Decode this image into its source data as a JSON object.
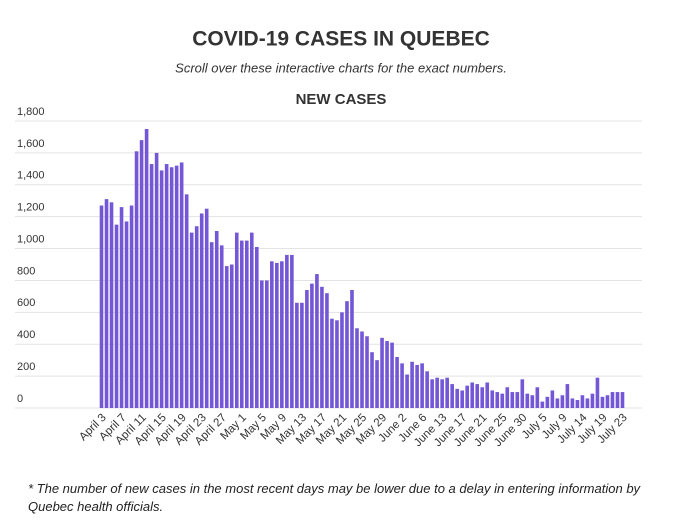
{
  "chart_data": {
    "type": "bar",
    "title": "COVID-19 CASES IN QUEBEC",
    "subtitle": "Scroll over these interactive charts for the exact numbers.",
    "chart_title": "NEW CASES",
    "note": "* The number of new cases in the most recent days may be lower due to a delay in entering information by Quebec health officials.",
    "color": "#7357d6",
    "grid": true,
    "ylim": [
      0,
      1800
    ],
    "yticks": [
      0,
      200,
      400,
      600,
      800,
      {
        "value": 1000,
        "label": "1,000"
      },
      {
        "value": 1200,
        "label": "1,200"
      },
      {
        "value": 1400,
        "label": "1,400"
      },
      {
        "value": 1600,
        "label": "1,600"
      },
      {
        "value": 1800,
        "label": "1,800"
      }
    ],
    "categories": [
      "April 3",
      null,
      null,
      null,
      "April 7",
      null,
      null,
      null,
      "April 11",
      null,
      null,
      null,
      "April 15",
      null,
      null,
      null,
      "April 19",
      null,
      null,
      null,
      "April 23",
      null,
      null,
      null,
      "April 27",
      null,
      null,
      null,
      "May 1",
      null,
      null,
      null,
      "May 5",
      null,
      null,
      null,
      "May 9",
      null,
      null,
      null,
      "May 13",
      null,
      null,
      null,
      "May 17",
      null,
      null,
      null,
      "May 21",
      null,
      null,
      null,
      "May 25",
      null,
      null,
      null,
      "May 29",
      null,
      null,
      null,
      "June 2",
      null,
      null,
      null,
      "June 6",
      null,
      null,
      null,
      "June 13",
      null,
      null,
      null,
      "June 17",
      null,
      null,
      null,
      "June 21",
      null,
      null,
      null,
      "June 25",
      null,
      null,
      null,
      "June 30",
      null,
      null,
      null,
      "July 5",
      null,
      null,
      null,
      "July 9",
      null,
      null,
      null,
      "July 14",
      null,
      null,
      null,
      "July 19",
      null,
      null,
      null,
      "July 23"
    ],
    "values": [
      1270,
      1310,
      1290,
      1150,
      1260,
      1170,
      1270,
      1610,
      1680,
      1750,
      1530,
      1600,
      1490,
      1530,
      1510,
      1520,
      1540,
      1340,
      1100,
      1140,
      1220,
      1250,
      1040,
      1110,
      1020,
      890,
      900,
      1100,
      1050,
      1050,
      1100,
      1010,
      800,
      800,
      920,
      910,
      920,
      960,
      960,
      660,
      660,
      740,
      780,
      840,
      760,
      720,
      560,
      550,
      600,
      670,
      740,
      500,
      480,
      450,
      350,
      300,
      440,
      420,
      410,
      320,
      280,
      210,
      290,
      270,
      280,
      230,
      180,
      190,
      180,
      190,
      150,
      120,
      110,
      140,
      160,
      150,
      130,
      160,
      110,
      100,
      90,
      130,
      100,
      100,
      180,
      90,
      80,
      130,
      40,
      70,
      110,
      60,
      80,
      150,
      60,
      50,
      80,
      60,
      90,
      190,
      70,
      80,
      100,
      100,
      100
    ]
  }
}
